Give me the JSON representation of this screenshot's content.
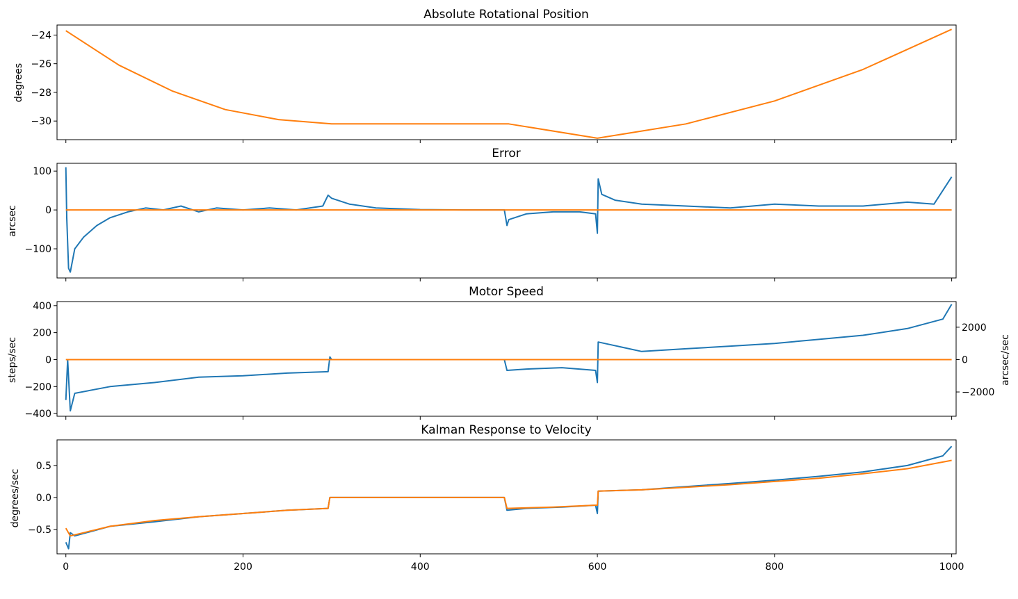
{
  "chart_data": [
    {
      "type": "line",
      "title": "Absolute Rotational Position",
      "xlabel": "",
      "ylabel": "degrees",
      "xlim": [
        -10,
        1005
      ],
      "ylim": [
        -31.3,
        -23.3
      ],
      "yticks": [
        -24,
        -26,
        -28,
        -30
      ],
      "ytick_labels": [
        "−24",
        "−26",
        "−28",
        "−30"
      ],
      "xticks": [
        0,
        200,
        400,
        600,
        800,
        1000
      ],
      "show_xtick_labels": false,
      "grid": false,
      "series": [
        {
          "color": "#ff7f0e",
          "x": [
            0,
            60,
            120,
            180,
            240,
            300,
            400,
            500,
            600,
            700,
            800,
            900,
            1000
          ],
          "y": [
            -23.7,
            -26.1,
            -27.9,
            -29.2,
            -29.9,
            -30.2,
            -30.2,
            -30.2,
            -31.2,
            -30.2,
            -28.6,
            -26.4,
            -23.6
          ]
        }
      ]
    },
    {
      "type": "line",
      "title": "Error",
      "xlabel": "",
      "ylabel": "arcsec",
      "xlim": [
        -10,
        1005
      ],
      "ylim": [
        -175,
        120
      ],
      "yticks": [
        100,
        0,
        -100
      ],
      "ytick_labels": [
        "100",
        "0",
        "−100"
      ],
      "xticks": [
        0,
        200,
        400,
        600,
        800,
        1000
      ],
      "show_xtick_labels": false,
      "grid": false,
      "series": [
        {
          "color": "#1f77b4",
          "x": [
            0,
            1,
            3,
            5,
            10,
            20,
            35,
            50,
            70,
            90,
            110,
            130,
            150,
            170,
            200,
            230,
            260,
            290,
            296,
            300,
            320,
            350,
            400,
            450,
            495,
            498,
            500,
            520,
            550,
            580,
            598,
            600,
            601,
            605,
            620,
            650,
            700,
            750,
            800,
            850,
            900,
            950,
            980,
            1000
          ],
          "y": [
            110,
            -20,
            -150,
            -160,
            -100,
            -70,
            -40,
            -20,
            -5,
            5,
            0,
            10,
            -5,
            5,
            0,
            5,
            0,
            10,
            38,
            30,
            15,
            5,
            1,
            0,
            0,
            -40,
            -25,
            -10,
            -5,
            -5,
            -10,
            -60,
            80,
            40,
            25,
            15,
            10,
            5,
            15,
            10,
            10,
            20,
            15,
            85
          ]
        },
        {
          "color": "#ff7f0e",
          "x": [
            0,
            1000
          ],
          "y": [
            0,
            0
          ]
        }
      ]
    },
    {
      "type": "line",
      "title": "Motor Speed",
      "xlabel": "",
      "ylabel": "steps/sec",
      "ylabel_right": "arcsec/sec",
      "xlim": [
        -10,
        1005
      ],
      "ylim": [
        -420,
        430
      ],
      "yticks": [
        400,
        200,
        0,
        -200,
        -400
      ],
      "ytick_labels": [
        "400",
        "200",
        "0",
        "−200",
        "−400"
      ],
      "y2lim": [
        -3500,
        3583
      ],
      "y2ticks": [
        2000,
        0,
        -2000
      ],
      "y2tick_labels": [
        "2000",
        "0",
        "−2000"
      ],
      "xticks": [
        0,
        200,
        400,
        600,
        800,
        1000
      ],
      "show_xtick_labels": false,
      "grid": false,
      "series": [
        {
          "color": "#1f77b4",
          "x": [
            0,
            2,
            5,
            10,
            50,
            100,
            150,
            200,
            250,
            296,
            298,
            300,
            400,
            495,
            498,
            520,
            560,
            598,
            600,
            601,
            650,
            700,
            750,
            800,
            850,
            900,
            950,
            990,
            1000
          ],
          "y": [
            -300,
            0,
            -380,
            -250,
            -200,
            -170,
            -130,
            -120,
            -100,
            -90,
            20,
            0,
            0,
            0,
            -80,
            -70,
            -60,
            -80,
            -170,
            130,
            60,
            80,
            100,
            120,
            150,
            180,
            230,
            300,
            410
          ]
        },
        {
          "color": "#ff7f0e",
          "x": [
            0,
            1000
          ],
          "y": [
            0,
            0
          ]
        }
      ]
    },
    {
      "type": "line",
      "title": "Kalman Response to Velocity",
      "xlabel": "",
      "ylabel": "degrees/sec",
      "xlim": [
        -10,
        1005
      ],
      "ylim": [
        -0.88,
        0.9
      ],
      "yticks": [
        0.5,
        0.0,
        -0.5
      ],
      "ytick_labels": [
        "0.5",
        "0.0",
        "−0.5"
      ],
      "xticks": [
        0,
        200,
        400,
        600,
        800,
        1000
      ],
      "xtick_labels": [
        "0",
        "200",
        "400",
        "600",
        "800",
        "1000"
      ],
      "show_xtick_labels": true,
      "grid": false,
      "series": [
        {
          "color": "#1f77b4",
          "x": [
            0,
            3,
            5,
            10,
            50,
            100,
            150,
            200,
            250,
            296,
            298,
            300,
            400,
            495,
            498,
            520,
            560,
            598,
            600,
            601,
            650,
            700,
            750,
            800,
            850,
            900,
            950,
            990,
            1000
          ],
          "y": [
            -0.7,
            -0.8,
            -0.55,
            -0.6,
            -0.45,
            -0.38,
            -0.3,
            -0.25,
            -0.2,
            -0.17,
            0,
            0,
            0,
            0,
            -0.2,
            -0.17,
            -0.15,
            -0.12,
            -0.25,
            0.1,
            0.12,
            0.17,
            0.22,
            0.27,
            0.33,
            0.4,
            0.5,
            0.65,
            0.8
          ]
        },
        {
          "color": "#ff7f0e",
          "x": [
            0,
            5,
            50,
            100,
            150,
            200,
            250,
            296,
            298,
            300,
            400,
            495,
            498,
            550,
            598,
            600,
            601,
            650,
            700,
            750,
            800,
            850,
            900,
            950,
            1000
          ],
          "y": [
            -0.48,
            -0.6,
            -0.45,
            -0.36,
            -0.3,
            -0.25,
            -0.2,
            -0.17,
            0,
            0,
            0,
            0,
            -0.17,
            -0.15,
            -0.12,
            -0.12,
            0.1,
            0.12,
            0.16,
            0.2,
            0.25,
            0.3,
            0.37,
            0.45,
            0.58
          ]
        }
      ]
    }
  ]
}
